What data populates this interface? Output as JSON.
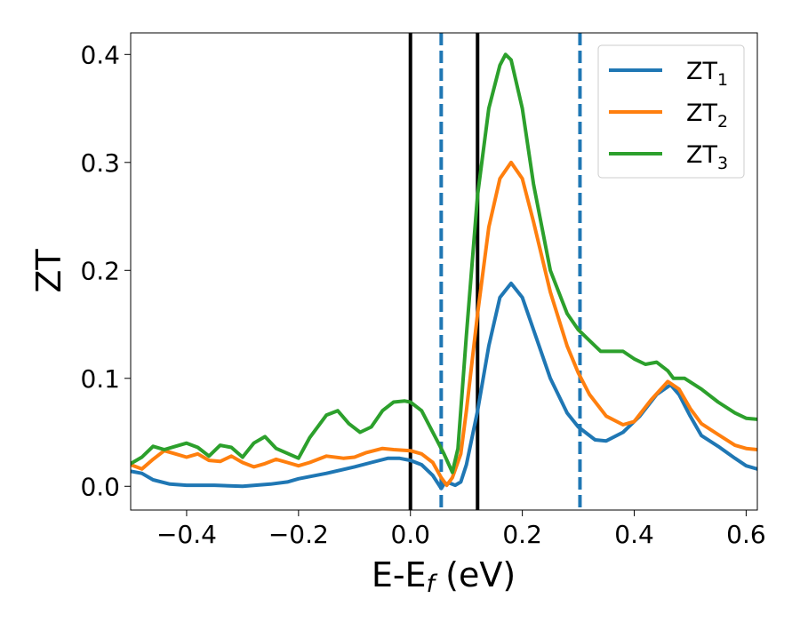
{
  "chart_data": {
    "type": "line",
    "xlabel": "E-E",
    "xlabel_sub": "f",
    "xlabel_suffix": " (eV)",
    "ylabel": "ZT",
    "xlim": [
      -0.5,
      0.62
    ],
    "ylim": [
      -0.022,
      0.42
    ],
    "xticks": [
      -0.4,
      -0.2,
      0.0,
      0.2,
      0.4,
      0.6
    ],
    "xtick_labels": [
      "−0.4",
      "−0.2",
      "0.0",
      "0.2",
      "0.4",
      "0.6"
    ],
    "yticks": [
      0.0,
      0.1,
      0.2,
      0.3,
      0.4
    ],
    "ytick_labels": [
      "0.0",
      "0.1",
      "0.2",
      "0.3",
      "0.4"
    ],
    "grid": false,
    "legend_position": "top-right",
    "vlines": [
      {
        "x": 0.0,
        "style": "solid",
        "color": "#000000"
      },
      {
        "x": 0.12,
        "style": "solid",
        "color": "#000000"
      },
      {
        "x": 0.055,
        "style": "dashed",
        "color": "#1f77b4"
      },
      {
        "x": 0.303,
        "style": "dashed",
        "color": "#1f77b4"
      }
    ],
    "series": [
      {
        "name": "ZT",
        "name_sub": "1",
        "color": "#1f77b4",
        "points": [
          [
            -0.5,
            0.014
          ],
          [
            -0.48,
            0.012
          ],
          [
            -0.46,
            0.006
          ],
          [
            -0.43,
            0.002
          ],
          [
            -0.4,
            0.001
          ],
          [
            -0.35,
            0.001
          ],
          [
            -0.3,
            0.0
          ],
          [
            -0.25,
            0.002
          ],
          [
            -0.22,
            0.004
          ],
          [
            -0.2,
            0.007
          ],
          [
            -0.15,
            0.012
          ],
          [
            -0.1,
            0.018
          ],
          [
            -0.07,
            0.022
          ],
          [
            -0.04,
            0.026
          ],
          [
            -0.02,
            0.026
          ],
          [
            0.0,
            0.024
          ],
          [
            0.02,
            0.02
          ],
          [
            0.04,
            0.01
          ],
          [
            0.05,
            0.002
          ],
          [
            0.055,
            -0.002
          ],
          [
            0.06,
            0.002
          ],
          [
            0.07,
            0.003
          ],
          [
            0.08,
            0.001
          ],
          [
            0.09,
            0.004
          ],
          [
            0.1,
            0.02
          ],
          [
            0.12,
            0.07
          ],
          [
            0.14,
            0.13
          ],
          [
            0.16,
            0.175
          ],
          [
            0.18,
            0.188
          ],
          [
            0.2,
            0.175
          ],
          [
            0.22,
            0.145
          ],
          [
            0.25,
            0.1
          ],
          [
            0.28,
            0.068
          ],
          [
            0.3,
            0.055
          ],
          [
            0.33,
            0.043
          ],
          [
            0.35,
            0.042
          ],
          [
            0.38,
            0.05
          ],
          [
            0.41,
            0.065
          ],
          [
            0.44,
            0.085
          ],
          [
            0.465,
            0.094
          ],
          [
            0.48,
            0.085
          ],
          [
            0.5,
            0.065
          ],
          [
            0.52,
            0.047
          ],
          [
            0.55,
            0.037
          ],
          [
            0.58,
            0.026
          ],
          [
            0.6,
            0.019
          ],
          [
            0.62,
            0.016
          ]
        ]
      },
      {
        "name": "ZT",
        "name_sub": "2",
        "color": "#ff7f0e",
        "points": [
          [
            -0.5,
            0.02
          ],
          [
            -0.48,
            0.016
          ],
          [
            -0.46,
            0.025
          ],
          [
            -0.44,
            0.033
          ],
          [
            -0.42,
            0.03
          ],
          [
            -0.4,
            0.027
          ],
          [
            -0.38,
            0.03
          ],
          [
            -0.36,
            0.024
          ],
          [
            -0.34,
            0.023
          ],
          [
            -0.32,
            0.028
          ],
          [
            -0.3,
            0.022
          ],
          [
            -0.28,
            0.018
          ],
          [
            -0.26,
            0.021
          ],
          [
            -0.24,
            0.025
          ],
          [
            -0.22,
            0.022
          ],
          [
            -0.2,
            0.019
          ],
          [
            -0.18,
            0.022
          ],
          [
            -0.15,
            0.028
          ],
          [
            -0.12,
            0.026
          ],
          [
            -0.1,
            0.027
          ],
          [
            -0.08,
            0.031
          ],
          [
            -0.05,
            0.035
          ],
          [
            -0.03,
            0.034
          ],
          [
            0.0,
            0.033
          ],
          [
            0.02,
            0.03
          ],
          [
            0.04,
            0.022
          ],
          [
            0.055,
            0.008
          ],
          [
            0.065,
            0.001
          ],
          [
            0.075,
            0.008
          ],
          [
            0.09,
            0.03
          ],
          [
            0.1,
            0.07
          ],
          [
            0.12,
            0.16
          ],
          [
            0.14,
            0.24
          ],
          [
            0.16,
            0.285
          ],
          [
            0.18,
            0.3
          ],
          [
            0.2,
            0.285
          ],
          [
            0.22,
            0.245
          ],
          [
            0.25,
            0.18
          ],
          [
            0.28,
            0.13
          ],
          [
            0.3,
            0.105
          ],
          [
            0.32,
            0.085
          ],
          [
            0.35,
            0.065
          ],
          [
            0.38,
            0.057
          ],
          [
            0.4,
            0.06
          ],
          [
            0.43,
            0.08
          ],
          [
            0.46,
            0.097
          ],
          [
            0.48,
            0.09
          ],
          [
            0.5,
            0.072
          ],
          [
            0.52,
            0.058
          ],
          [
            0.55,
            0.048
          ],
          [
            0.58,
            0.038
          ],
          [
            0.6,
            0.035
          ],
          [
            0.62,
            0.034
          ]
        ]
      },
      {
        "name": "ZT",
        "name_sub": "3",
        "color": "#2ca02c",
        "points": [
          [
            -0.5,
            0.021
          ],
          [
            -0.48,
            0.027
          ],
          [
            -0.46,
            0.037
          ],
          [
            -0.44,
            0.034
          ],
          [
            -0.42,
            0.037
          ],
          [
            -0.4,
            0.04
          ],
          [
            -0.38,
            0.036
          ],
          [
            -0.36,
            0.028
          ],
          [
            -0.34,
            0.038
          ],
          [
            -0.32,
            0.036
          ],
          [
            -0.3,
            0.027
          ],
          [
            -0.28,
            0.04
          ],
          [
            -0.26,
            0.046
          ],
          [
            -0.24,
            0.035
          ],
          [
            -0.2,
            0.026
          ],
          [
            -0.18,
            0.045
          ],
          [
            -0.15,
            0.066
          ],
          [
            -0.13,
            0.07
          ],
          [
            -0.11,
            0.058
          ],
          [
            -0.09,
            0.05
          ],
          [
            -0.07,
            0.055
          ],
          [
            -0.05,
            0.07
          ],
          [
            -0.03,
            0.078
          ],
          [
            -0.01,
            0.079
          ],
          [
            0.0,
            0.078
          ],
          [
            0.02,
            0.07
          ],
          [
            0.04,
            0.05
          ],
          [
            0.06,
            0.03
          ],
          [
            0.075,
            0.013
          ],
          [
            0.085,
            0.035
          ],
          [
            0.1,
            0.14
          ],
          [
            0.12,
            0.27
          ],
          [
            0.14,
            0.35
          ],
          [
            0.16,
            0.39
          ],
          [
            0.17,
            0.4
          ],
          [
            0.18,
            0.395
          ],
          [
            0.2,
            0.35
          ],
          [
            0.22,
            0.28
          ],
          [
            0.25,
            0.2
          ],
          [
            0.28,
            0.16
          ],
          [
            0.3,
            0.145
          ],
          [
            0.32,
            0.135
          ],
          [
            0.34,
            0.125
          ],
          [
            0.36,
            0.125
          ],
          [
            0.38,
            0.125
          ],
          [
            0.4,
            0.118
          ],
          [
            0.42,
            0.113
          ],
          [
            0.44,
            0.115
          ],
          [
            0.46,
            0.107
          ],
          [
            0.47,
            0.1
          ],
          [
            0.49,
            0.1
          ],
          [
            0.52,
            0.09
          ],
          [
            0.55,
            0.078
          ],
          [
            0.58,
            0.068
          ],
          [
            0.6,
            0.063
          ],
          [
            0.62,
            0.062
          ]
        ]
      }
    ]
  }
}
